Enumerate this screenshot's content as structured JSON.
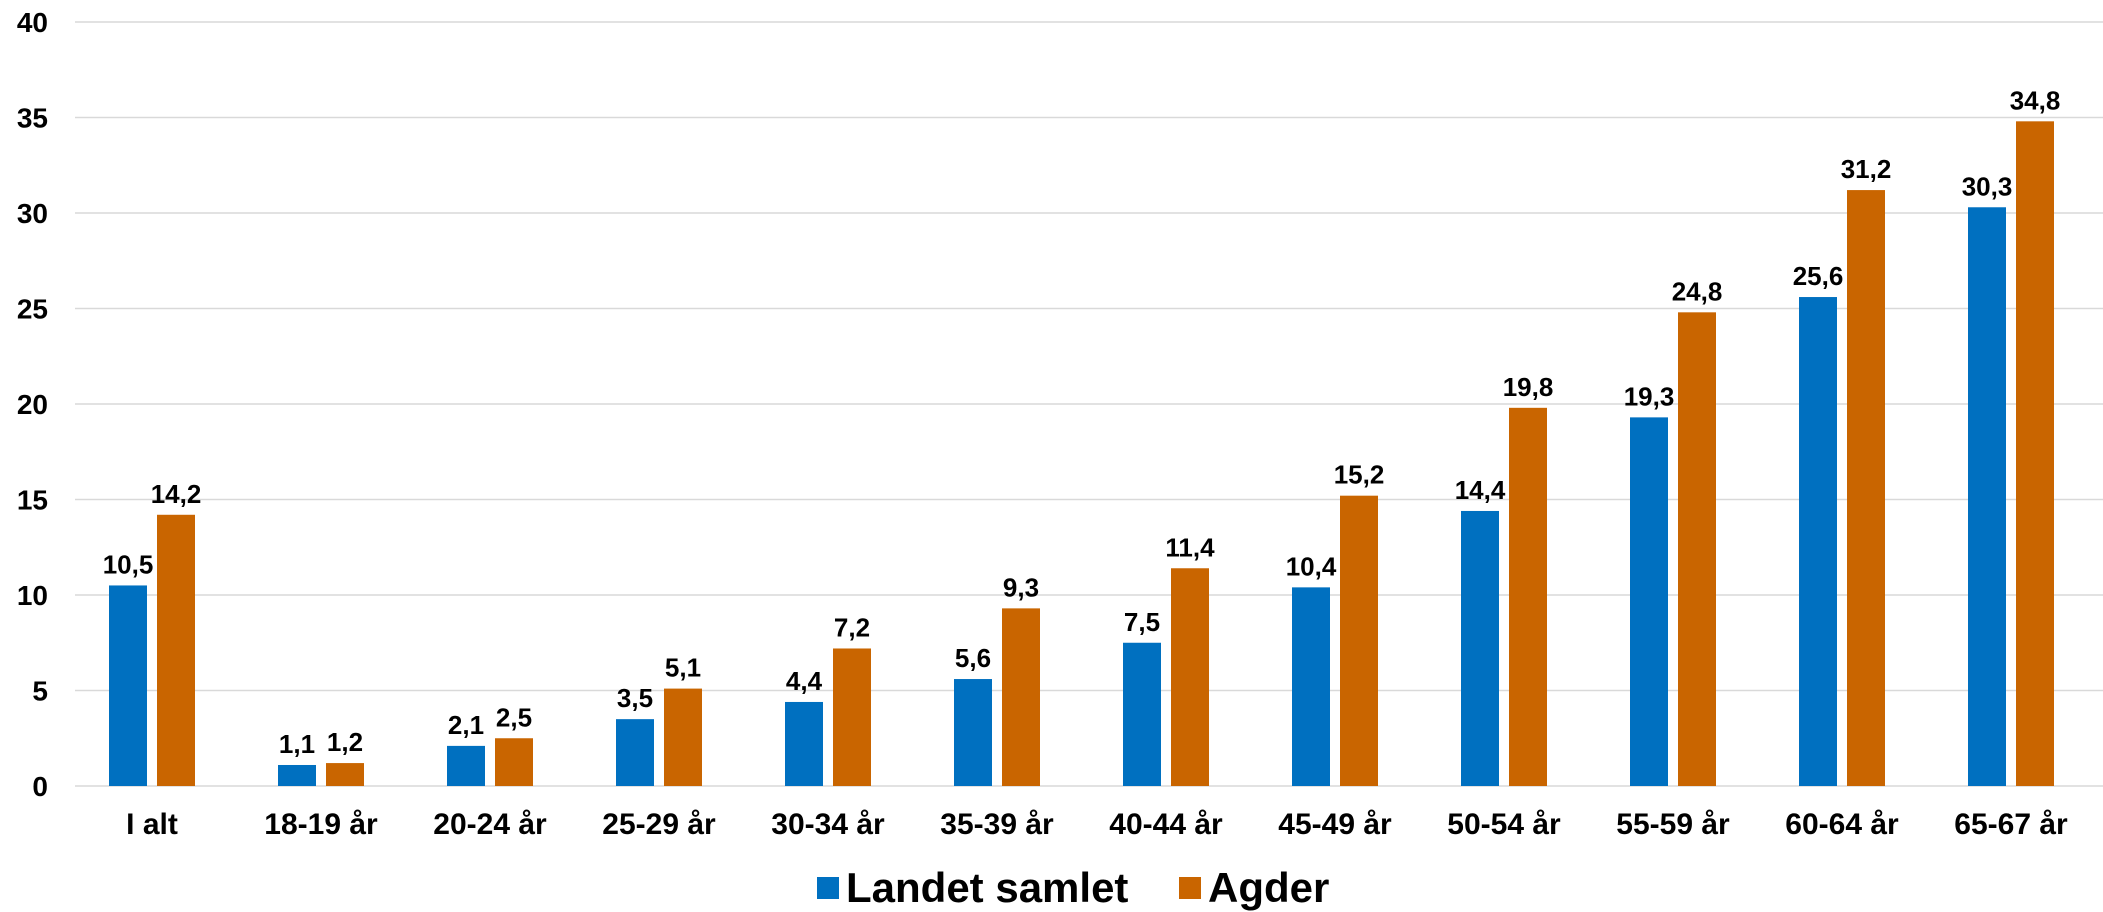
{
  "chart_data": {
    "type": "bar",
    "categories": [
      "I alt",
      "18-19 år",
      "20-24 år",
      "25-29 år",
      "30-34 år",
      "35-39 år",
      "40-44 år",
      "45-49 år",
      "50-54 år",
      "55-59 år",
      "60-64 år",
      "65-67 år"
    ],
    "series": [
      {
        "name": "Landet samlet",
        "color": "#0070C0",
        "values": [
          10.5,
          1.1,
          2.1,
          3.5,
          4.4,
          5.6,
          7.5,
          10.4,
          14.4,
          19.3,
          25.6,
          30.3
        ],
        "labels": [
          "10,5",
          "1,1",
          "2,1",
          "3,5",
          "4,4",
          "5,6",
          "7,5",
          "10,4",
          "14,4",
          "19,3",
          "25,6",
          "30,3"
        ]
      },
      {
        "name": "Agder",
        "color": "#C96500",
        "values": [
          14.2,
          1.2,
          2.5,
          5.1,
          7.2,
          9.3,
          11.4,
          15.2,
          19.8,
          24.8,
          31.2,
          34.8
        ],
        "labels": [
          "14,2",
          "1,2",
          "2,5",
          "5,1",
          "7,2",
          "9,3",
          "11,4",
          "15,2",
          "19,8",
          "24,8",
          "31,2",
          "34,8"
        ]
      }
    ],
    "ylim": [
      0,
      40
    ],
    "yticks": [
      0,
      5,
      10,
      15,
      20,
      25,
      30,
      35,
      40
    ],
    "title": "",
    "xlabel": "",
    "ylabel": "",
    "grid": true,
    "legend_position": "bottom"
  }
}
